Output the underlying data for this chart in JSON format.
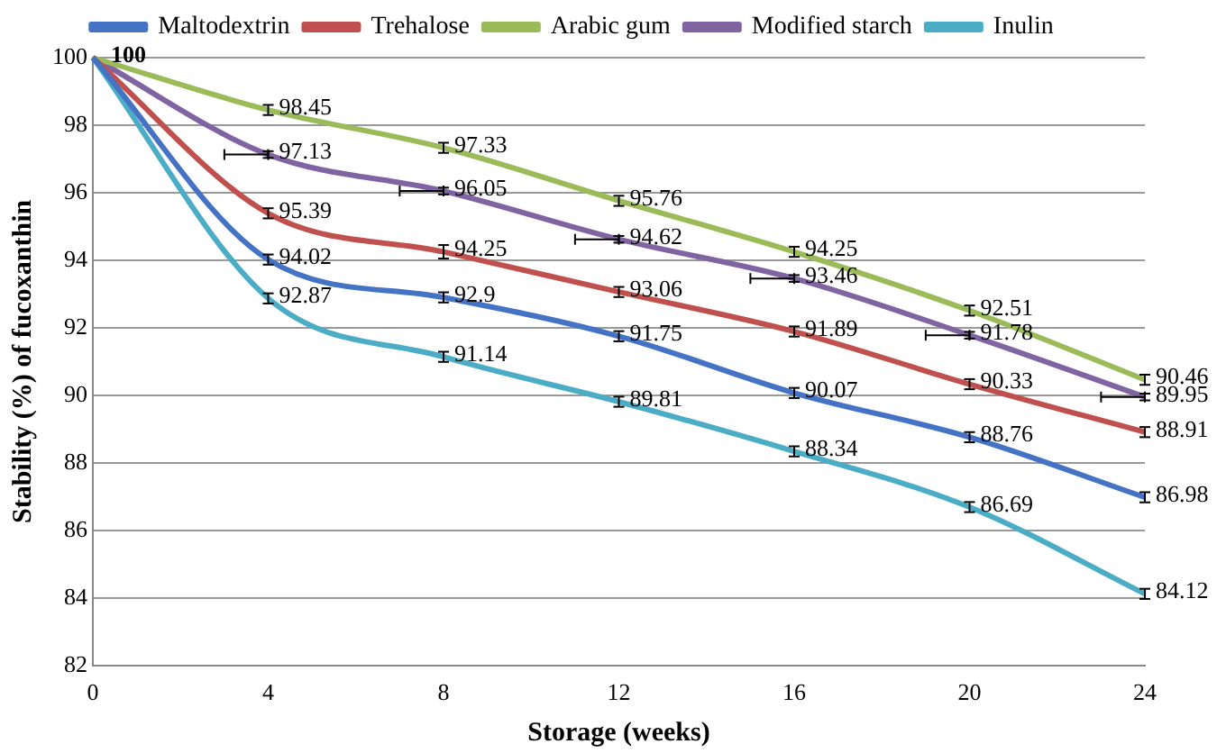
{
  "chart_data": {
    "type": "line",
    "xlabel": "Storage (weeks)",
    "ylabel": "Stability (%) of fucoxanthin",
    "x": [
      0,
      4,
      8,
      12,
      16,
      20,
      24
    ],
    "xlim": [
      0,
      24
    ],
    "xticks": [
      0,
      4,
      8,
      12,
      16,
      20,
      24
    ],
    "ylim": [
      82,
      100
    ],
    "yticks": [
      82,
      84,
      86,
      88,
      90,
      92,
      94,
      96,
      98,
      100
    ],
    "grid": "y",
    "legend": "top",
    "marker": "none",
    "line_style": "solid",
    "series": [
      {
        "name": "Maltodextrin",
        "color": "#4472c4",
        "values": [
          100,
          94.02,
          92.9,
          91.75,
          90.07,
          88.76,
          86.98
        ],
        "errors": [
          null,
          0.15,
          0.15,
          0.15,
          0.15,
          0.15,
          0.15
        ],
        "value_labels": [
          null,
          "94.02",
          "92.9",
          "91.75",
          "90.07",
          "88.76",
          "86.98"
        ]
      },
      {
        "name": "Trehalose",
        "color": "#c0504d",
        "values": [
          100,
          95.39,
          94.25,
          93.06,
          91.89,
          90.33,
          88.91
        ],
        "errors": [
          null,
          0.15,
          0.2,
          0.15,
          0.15,
          0.15,
          0.15
        ],
        "value_labels": [
          null,
          "95.39",
          "94.25",
          "93.06",
          "91.89",
          "90.33",
          "88.91"
        ]
      },
      {
        "name": "Arabic gum",
        "color": "#9bbb59",
        "values": [
          100,
          98.45,
          97.33,
          95.76,
          94.25,
          92.51,
          90.46
        ],
        "errors": [
          null,
          0.15,
          0.15,
          0.15,
          0.15,
          0.15,
          0.15
        ],
        "value_labels": [
          "100",
          "98.45",
          "97.33",
          "95.76",
          "94.25",
          "92.51",
          "90.46"
        ]
      },
      {
        "name": "Modified starch",
        "color": "#8064a2",
        "values": [
          100,
          97.13,
          96.05,
          94.62,
          93.46,
          91.78,
          89.95
        ],
        "errors": [
          null,
          0.1,
          0.1,
          0.1,
          0.1,
          0.1,
          0.1
        ],
        "xerrors": [
          null,
          [
            3,
            4
          ],
          [
            7,
            8
          ],
          [
            11,
            12
          ],
          [
            15,
            16
          ],
          [
            19,
            20
          ],
          [
            23,
            24
          ]
        ],
        "value_labels": [
          null,
          "97.13",
          "96.05",
          "94.62",
          "93.46",
          "91.78",
          "89.95"
        ]
      },
      {
        "name": "Inulin",
        "color": "#4bacc6",
        "values": [
          100,
          92.87,
          91.14,
          89.81,
          88.34,
          86.69,
          84.12
        ],
        "errors": [
          null,
          0.15,
          0.15,
          0.15,
          0.15,
          0.15,
          0.15
        ],
        "value_labels": [
          null,
          "92.87",
          "91.14",
          "89.81",
          "88.34",
          "86.69",
          "84.12"
        ]
      }
    ]
  }
}
